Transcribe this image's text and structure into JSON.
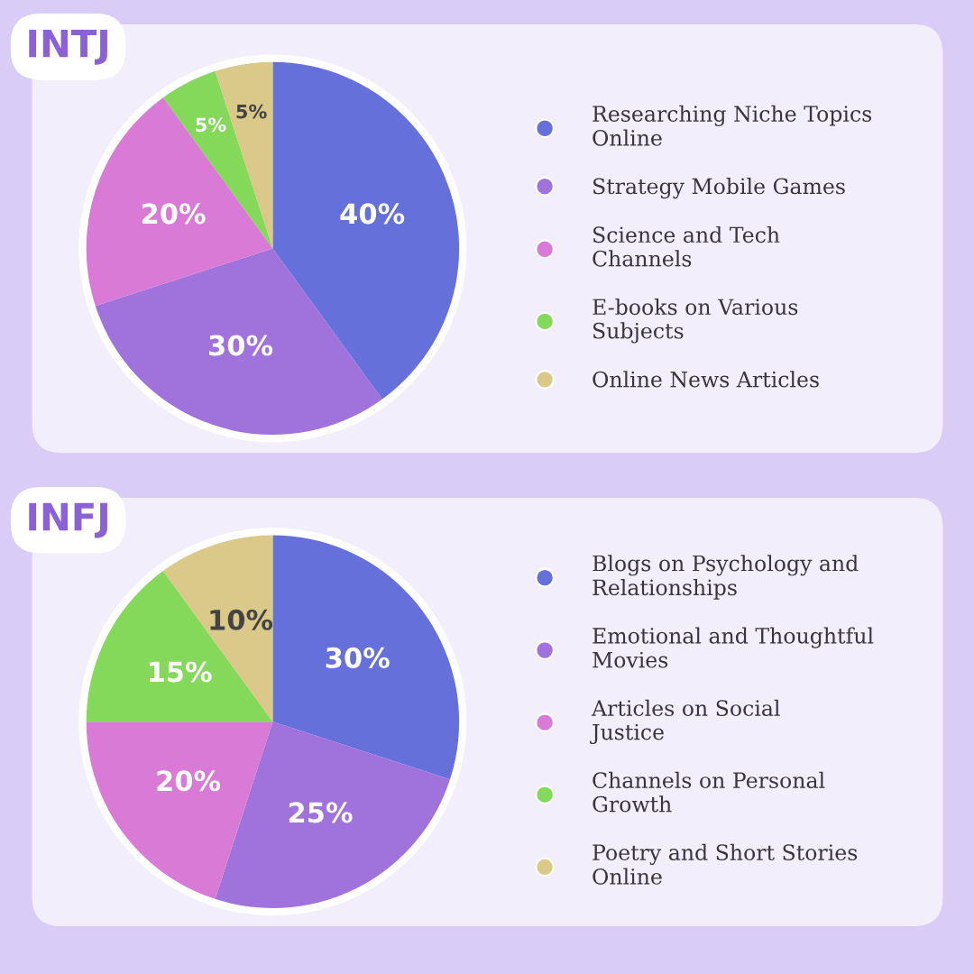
{
  "chart_data": [
    {
      "type": "pie",
      "title": "INTJ",
      "categories": [
        "Researching Niche Topics Online",
        "Strategy Mobile Games",
        "Science and Tech Channels",
        "E-books on Various Subjects",
        "Online News Articles"
      ],
      "values": [
        40,
        30,
        20,
        5,
        5
      ],
      "value_labels": [
        "40%",
        "30%",
        "20%",
        "5%",
        "5%"
      ],
      "colors": [
        "#6670db",
        "#a072dc",
        "#d97ad6",
        "#84d95a",
        "#dbc98a"
      ],
      "legend": "right"
    },
    {
      "type": "pie",
      "title": "INFJ",
      "categories": [
        "Blogs on Psychology and Relationships",
        "Emotional and Thoughtful Movies",
        "Articles on Social Justice",
        "Channels on Personal Growth",
        "Poetry and Short Stories Online"
      ],
      "values": [
        30,
        25,
        20,
        15,
        10
      ],
      "value_labels": [
        "30%",
        "25%",
        "20%",
        "15%",
        "10%"
      ],
      "colors": [
        "#6670db",
        "#a072dc",
        "#d97ad6",
        "#84d95a",
        "#dbc98a"
      ],
      "legend": "right"
    }
  ]
}
